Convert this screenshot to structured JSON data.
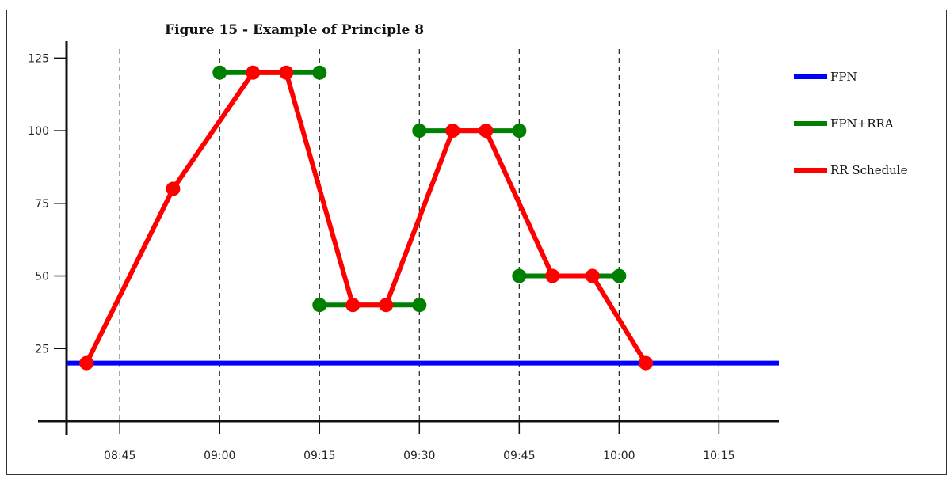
{
  "chart_data": {
    "type": "line",
    "title": "Figure 15 - Example of Principle 8",
    "xlabel": "",
    "ylabel": "",
    "ylim": [
      0,
      130
    ],
    "yticks": [
      25,
      50,
      75,
      100,
      125
    ],
    "x_axis": {
      "unit": "time (HH:MM)",
      "range": [
        "08:37",
        "10:24"
      ],
      "ticks": [
        "08:45",
        "09:00",
        "09:15",
        "09:30",
        "09:45",
        "10:00",
        "10:15"
      ]
    },
    "gridlines": "vertical dashed at x ticks",
    "legend": {
      "position": "right"
    },
    "series": [
      {
        "name": "FPN",
        "color": "#0000ff",
        "markers": false,
        "segments": [
          [
            {
              "x": "08:37",
              "y": 20
            },
            {
              "x": "10:24",
              "y": 20
            }
          ]
        ]
      },
      {
        "name": "FPN+RRA",
        "color": "#008000",
        "markers": true,
        "segments": [
          [
            {
              "x": "09:00",
              "y": 120
            },
            {
              "x": "09:15",
              "y": 120
            }
          ],
          [
            {
              "x": "09:15",
              "y": 40
            },
            {
              "x": "09:30",
              "y": 40
            }
          ],
          [
            {
              "x": "09:30",
              "y": 100
            },
            {
              "x": "09:45",
              "y": 100
            }
          ],
          [
            {
              "x": "09:45",
              "y": 50
            },
            {
              "x": "10:00",
              "y": 50
            }
          ]
        ]
      },
      {
        "name": "RR Schedule",
        "color": "#ff0000",
        "markers": true,
        "segments": [
          [
            {
              "x": "08:40",
              "y": 20
            },
            {
              "x": "08:53",
              "y": 80
            },
            {
              "x": "09:05",
              "y": 120
            },
            {
              "x": "09:10",
              "y": 120
            },
            {
              "x": "09:20",
              "y": 40
            },
            {
              "x": "09:25",
              "y": 40
            },
            {
              "x": "09:35",
              "y": 100
            },
            {
              "x": "09:40",
              "y": 100
            },
            {
              "x": "09:50",
              "y": 50
            },
            {
              "x": "09:56",
              "y": 50
            },
            {
              "x": "10:04",
              "y": 20
            }
          ]
        ]
      }
    ]
  }
}
